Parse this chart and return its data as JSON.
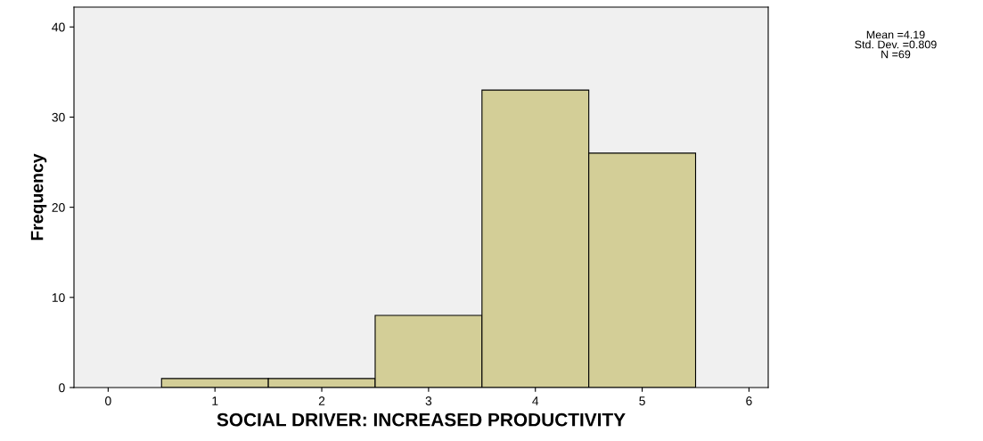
{
  "chart_data": {
    "type": "histogram",
    "xlabel": "SOCIAL DRIVER: INCREASED PRODUCTIVITY",
    "ylabel": "Frequency",
    "bins": [
      0.5,
      1.5,
      2.5,
      3.5,
      4.5,
      5.5
    ],
    "values": [
      1,
      1,
      8,
      33,
      26
    ],
    "color": "#d3ce97",
    "xlim": [
      -0.32,
      6.18
    ],
    "xticks": [
      0,
      1,
      2,
      3,
      4,
      5,
      6
    ],
    "ylim": [
      0,
      42.2
    ],
    "yticks": [
      0,
      10,
      20,
      30,
      40
    ],
    "grid": false,
    "annotations": [
      "Mean =4.19",
      "Std. Dev. =0.809",
      "N =69"
    ]
  }
}
